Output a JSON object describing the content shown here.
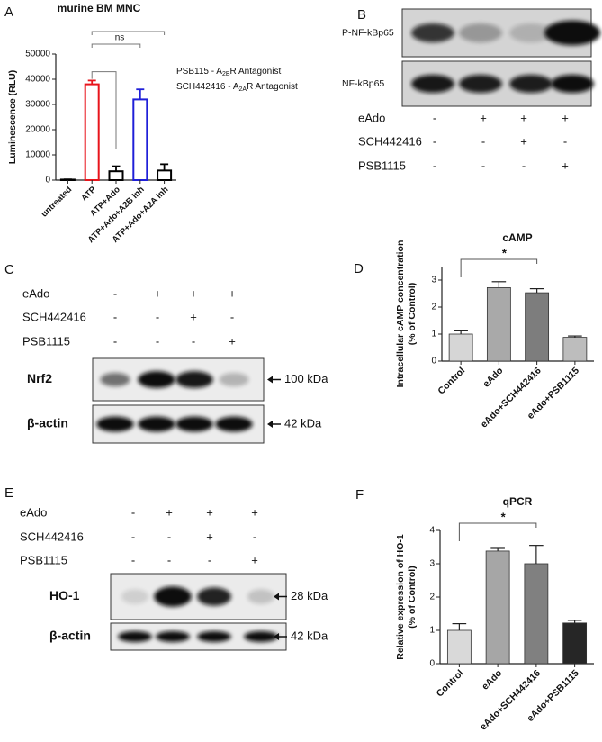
{
  "chart_data": [
    {
      "type": "bar",
      "panel": "A",
      "title": "murine BM MNC",
      "ylabel": [
        "Luminescence (RLU)"
      ],
      "categories": [
        "untreated",
        "ATP",
        "ATP+Ado",
        "ATP+Ado+A2B Inh",
        "ATP+Ado+A2A Inh"
      ],
      "values": [
        200,
        38000,
        3500,
        32000,
        3800
      ],
      "errors": [
        100,
        1500,
        2000,
        4000,
        2500
      ],
      "colors": [
        "#000000",
        "#e8141b",
        "#000000",
        "#1f1fd8",
        "#000000"
      ],
      "hollow": true,
      "ylim": [
        0,
        50000
      ],
      "yticks": [
        0,
        10000,
        20000,
        30000,
        40000,
        50000
      ],
      "annotations": [
        "ns"
      ],
      "legend_text": [
        {
          "parts": [
            "PSB115 - A",
            "2B",
            "R Antagonist"
          ]
        },
        {
          "parts": [
            "SCH442416  - A",
            "2A",
            "R Antagonist"
          ]
        }
      ]
    },
    {
      "type": "bar",
      "panel": "D",
      "title": "cAMP",
      "ylabel": [
        "Intracellular cAMP concentration",
        "(% of Control)"
      ],
      "categories": [
        "Control",
        "eAdo",
        "eAdo+SCH442416",
        "eAdo+PSB1115"
      ],
      "values": [
        1.0,
        2.72,
        2.53,
        0.88
      ],
      "errors": [
        0.12,
        0.22,
        0.15,
        0.05
      ],
      "colors": [
        "#d6d6d6",
        "#a9a9a9",
        "#7d7d7d",
        "#bdbdbd"
      ],
      "hollow": false,
      "ylim": [
        0,
        3.5
      ],
      "yticks": [
        0,
        1,
        2,
        3
      ],
      "annotations": [
        "*"
      ]
    },
    {
      "type": "bar",
      "panel": "F",
      "title": "qPCR",
      "ylabel": [
        "Relative expression of HO-1",
        "(% of Control)"
      ],
      "categories": [
        "Control",
        "eAdo",
        "eAdo+SCH442416",
        "eAdo+PSB1115"
      ],
      "values": [
        1.0,
        3.38,
        3.0,
        1.22
      ],
      "errors": [
        0.2,
        0.08,
        0.55,
        0.08
      ],
      "colors": [
        "#d9d9d9",
        "#a6a6a6",
        "#808080",
        "#262626"
      ],
      "hollow": false,
      "ylim": [
        0,
        4
      ],
      "yticks": [
        0,
        1,
        2,
        3,
        4
      ],
      "annotations": [
        "*"
      ]
    }
  ],
  "blots": [
    {
      "panel": "B",
      "bands": [
        {
          "label": "P-NF-kBp65"
        },
        {
          "label": "NF-kBp65"
        }
      ],
      "conditions": [
        {
          "label": "eAdo",
          "signs": [
            "-",
            "+",
            "+",
            "+"
          ]
        },
        {
          "label": "SCH442416",
          "signs": [
            "-",
            "-",
            "+",
            "-"
          ]
        },
        {
          "label": "PSB1115",
          "signs": [
            "-",
            "-",
            "-",
            "+"
          ]
        }
      ]
    },
    {
      "panel": "C",
      "bands": [
        {
          "label": "Nrf2",
          "size": "100 kDa"
        },
        {
          "label": "β-actin",
          "size": "42 kDa"
        }
      ],
      "conditions": [
        {
          "label": "eAdo",
          "signs": [
            "-",
            "+",
            "+",
            "+"
          ]
        },
        {
          "label": "SCH442416",
          "signs": [
            "-",
            "-",
            "+",
            "-"
          ]
        },
        {
          "label": "PSB1115",
          "signs": [
            "-",
            "-",
            "-",
            "+"
          ]
        }
      ]
    },
    {
      "panel": "E",
      "bands": [
        {
          "label": "HO-1",
          "size": "28 kDa"
        },
        {
          "label": "β-actin",
          "size": "42 kDa"
        }
      ],
      "conditions": [
        {
          "label": "eAdo",
          "signs": [
            "-",
            "+",
            "+",
            "+"
          ]
        },
        {
          "label": "SCH442416",
          "signs": [
            "-",
            "-",
            "+",
            "-"
          ]
        },
        {
          "label": "PSB1115",
          "signs": [
            "-",
            "-",
            "-",
            "+"
          ]
        }
      ]
    }
  ]
}
